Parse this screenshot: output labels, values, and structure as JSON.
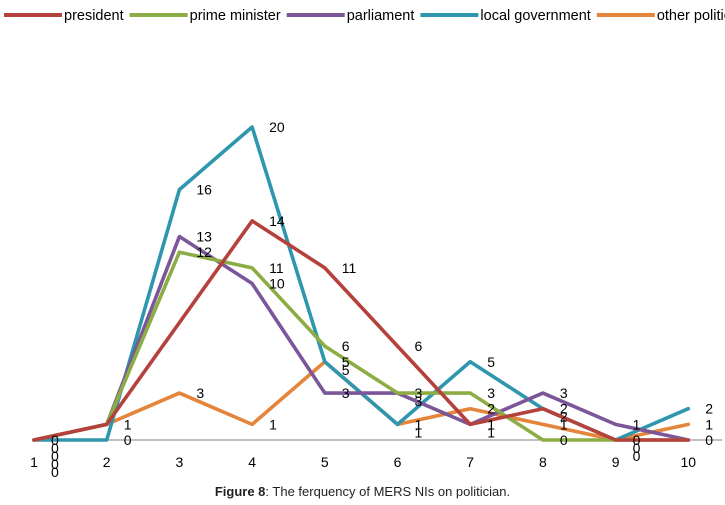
{
  "caption": {
    "label": "Figure 8",
    "text": ": The ferquency of MERS NIs on politician."
  },
  "chart_data": {
    "type": "line",
    "x": [
      1,
      2,
      3,
      4,
      5,
      6,
      7,
      8,
      9,
      10
    ],
    "ylim": [
      0,
      20
    ],
    "legend_position": "top",
    "grid": false,
    "series": [
      {
        "name": "president",
        "color": "#b5413d",
        "values": [
          0,
          1,
          null,
          14,
          11,
          6,
          1,
          2,
          0,
          0
        ]
      },
      {
        "name": "prime minister",
        "color": "#8cad44",
        "values": [
          0,
          1,
          12,
          11,
          6,
          3,
          3,
          0,
          0,
          0
        ]
      },
      {
        "name": "parliament",
        "color": "#7b579a",
        "values": [
          0,
          1,
          13,
          10,
          3,
          3,
          1,
          3,
          1,
          0
        ]
      },
      {
        "name": "local government",
        "color": "#2e96ad",
        "values": [
          0,
          0,
          16,
          20,
          5,
          1,
          5,
          2,
          0,
          2
        ]
      },
      {
        "name": "other politics",
        "color": "#e5843b",
        "values": [
          0,
          1,
          3,
          1,
          5,
          1,
          2,
          1,
          0,
          1
        ]
      }
    ],
    "data_labels": [
      {
        "series": "president",
        "text": [
          "0",
          "1",
          "",
          "14",
          "11",
          "6",
          "1",
          "2",
          "0",
          "0"
        ]
      },
      {
        "series": "prime minister",
        "text": [
          "0",
          "",
          "12",
          "11",
          "6",
          "3",
          "3",
          "0",
          "",
          ""
        ]
      },
      {
        "series": "parliament",
        "text": [
          "0",
          "",
          "13",
          "10",
          "3",
          "3",
          "1",
          "3",
          "1",
          ""
        ]
      },
      {
        "series": "local government",
        "text": [
          "0",
          "0",
          "16",
          "20",
          "5",
          "1",
          "5",
          "2",
          "0",
          "2"
        ]
      },
      {
        "series": "other politics",
        "text": [
          "0",
          "",
          "3",
          "1",
          "5",
          "1",
          "2",
          "1",
          "0",
          "1"
        ]
      }
    ]
  }
}
